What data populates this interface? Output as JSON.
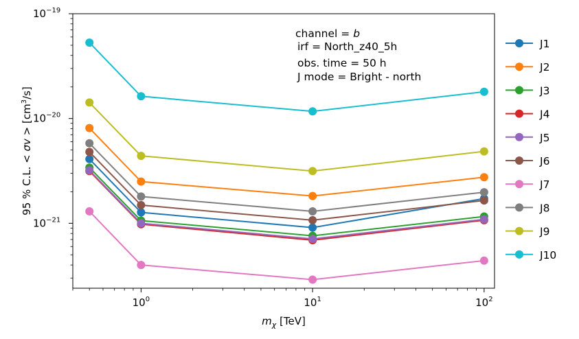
{
  "chart_data": {
    "type": "line",
    "xscale": "log",
    "yscale": "log",
    "xlabel_var": "m",
    "xlabel_sub": "χ",
    "xlabel_unit": " [TeV]",
    "ylabel_prefix": "95 % C.L.  < ",
    "ylabel_var": "σv",
    "ylabel_mid": " >   [cm",
    "ylabel_sup": "3",
    "ylabel_suffix": "/s]",
    "xlim": [
      0.4,
      115
    ],
    "ylim": [
      2.4e-22,
      1e-19
    ],
    "x_ticks": [
      {
        "value": 1,
        "base": "10",
        "exp": "0"
      },
      {
        "value": 10,
        "base": "10",
        "exp": "1"
      },
      {
        "value": 100,
        "base": "10",
        "exp": "2"
      }
    ],
    "y_ticks": [
      {
        "value": 1e-21,
        "base": "10",
        "exp": "−21"
      },
      {
        "value": 1e-20,
        "base": "10",
        "exp": "−20"
      },
      {
        "value": 1e-19,
        "base": "10",
        "exp": "−19"
      }
    ],
    "x": [
      0.5,
      1,
      10,
      100
    ],
    "series": [
      {
        "name": "J1",
        "color": "#1f77b4",
        "values": [
          4.1e-21,
          1.27e-21,
          9.1e-22,
          1.72e-21
        ]
      },
      {
        "name": "J2",
        "color": "#ff7f0e",
        "values": [
          8.1e-21,
          2.5e-21,
          1.82e-21,
          2.75e-21
        ]
      },
      {
        "name": "J3",
        "color": "#2ca02c",
        "values": [
          3.4e-21,
          1.06e-21,
          7.6e-22,
          1.16e-21
        ]
      },
      {
        "name": "J4",
        "color": "#d62728",
        "values": [
          3.15e-21,
          9.8e-22,
          6.9e-22,
          1.07e-21
        ]
      },
      {
        "name": "J5",
        "color": "#9467bd",
        "values": [
          3.2e-21,
          1e-21,
          7.1e-22,
          1.09e-21
        ]
      },
      {
        "name": "J6",
        "color": "#8c564b",
        "values": [
          4.8e-21,
          1.49e-21,
          1.07e-21,
          1.65e-21
        ]
      },
      {
        "name": "J7",
        "color": "#e377c2",
        "values": [
          1.3e-21,
          4e-22,
          2.9e-22,
          4.4e-22
        ]
      },
      {
        "name": "J8",
        "color": "#7f7f7f",
        "values": [
          5.8e-21,
          1.8e-21,
          1.3e-21,
          1.98e-21
        ]
      },
      {
        "name": "J9",
        "color": "#bcbd22",
        "values": [
          1.42e-20,
          4.4e-21,
          3.15e-21,
          4.85e-21
        ]
      },
      {
        "name": "J10",
        "color": "#17becf",
        "values": [
          5.3e-20,
          1.63e-20,
          1.17e-20,
          1.8e-20
        ]
      }
    ],
    "annotation": {
      "line1_prefix": "channel = ",
      "line1_var": "b",
      "line2": "irf = North_z40_5h",
      "line3": "obs. time = 50 h",
      "line4": "J mode = Bright - north"
    },
    "legend_placement": "outside-right",
    "grid": false
  }
}
